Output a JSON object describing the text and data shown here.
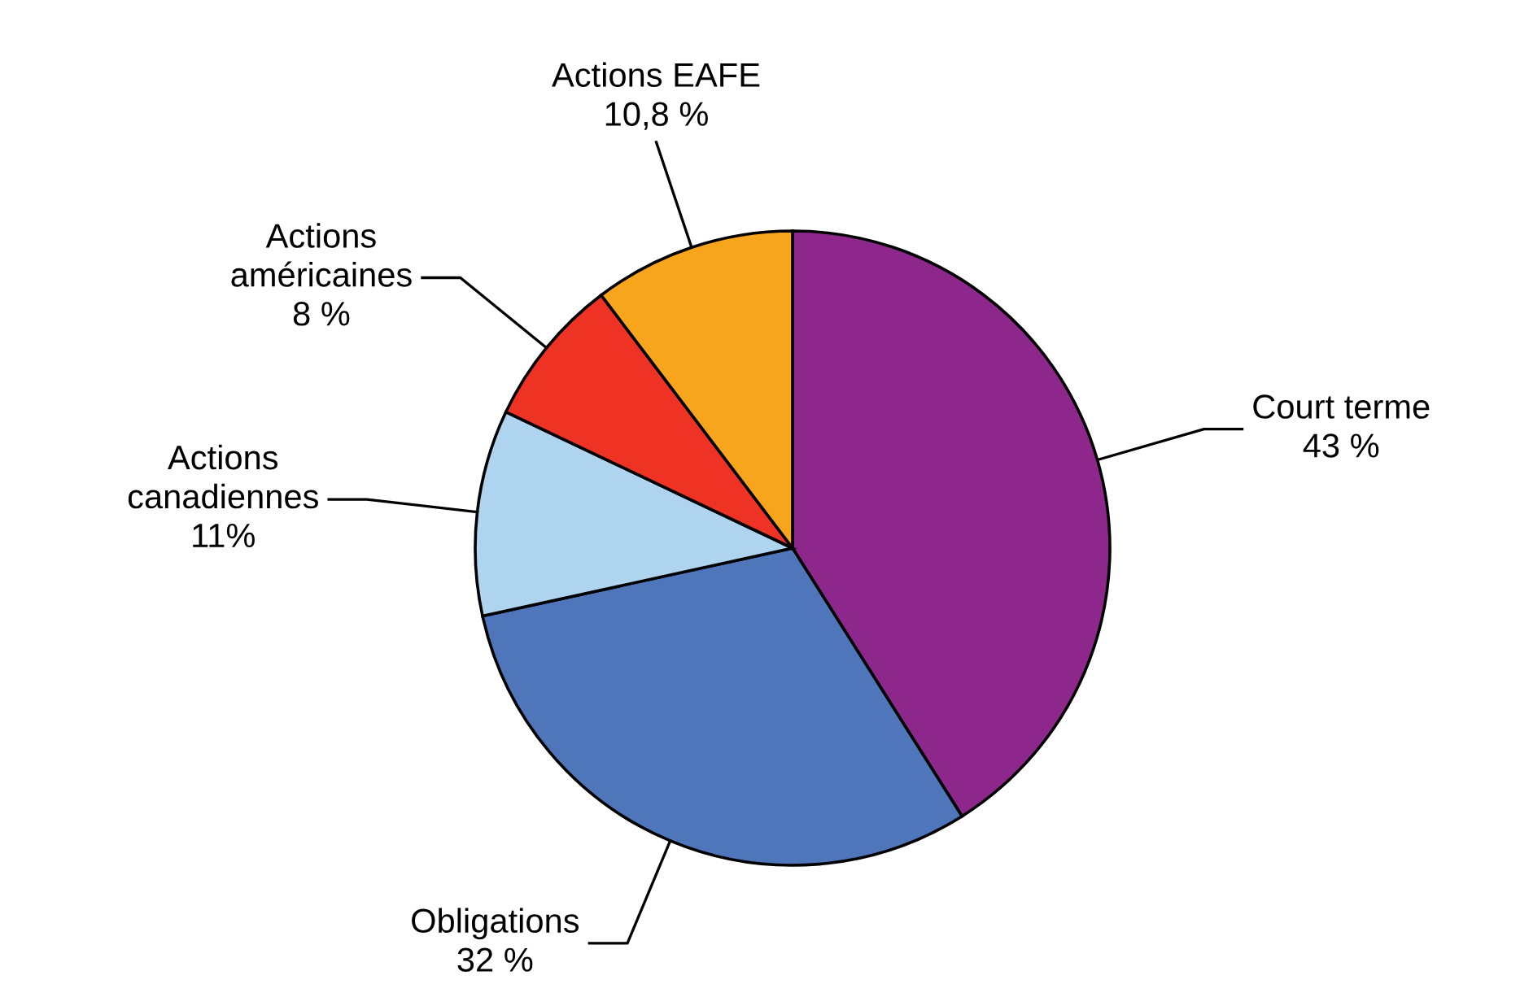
{
  "chart_data": {
    "type": "pie",
    "categories": [
      "Court terme",
      "Obligations",
      "Actions\ncanadiennes",
      "Actions\naméricaines",
      "Actions EAFE"
    ],
    "values": [
      43,
      32,
      11,
      8,
      10.8
    ],
    "value_labels": [
      "43 %",
      "32 %",
      "11%",
      "8 %",
      "10,8 %"
    ],
    "colors": [
      "#8e278c",
      "#4f76bb",
      "#aed4f0",
      "#ee3224",
      "#f7a51c"
    ]
  }
}
